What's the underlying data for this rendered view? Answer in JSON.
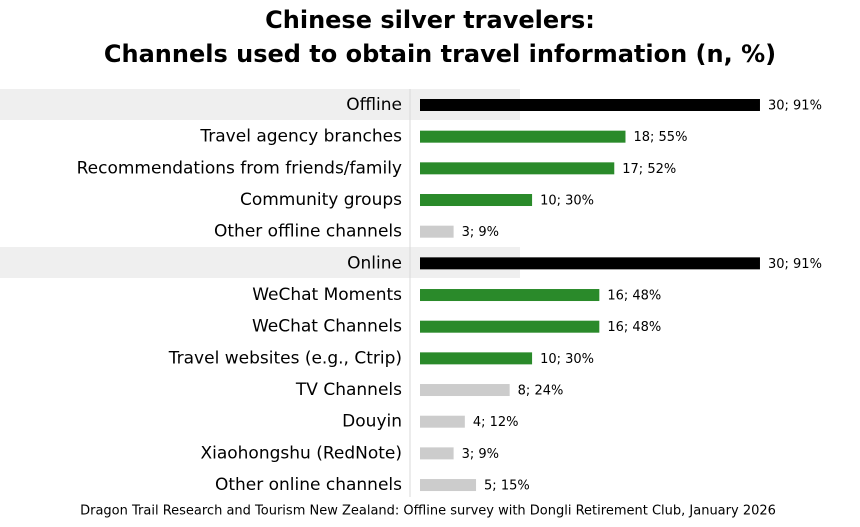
{
  "chart_data": {
    "type": "bar",
    "orientation": "horizontal",
    "title": [
      "Chinese silver travelers:",
      "Channels used to obtain travel information (n, %)"
    ],
    "categories": [
      "Offline",
      "Travel agency branches",
      "Recommendations from friends/family",
      "Community groups",
      "Other offline channels",
      "Online",
      "WeChat Moments",
      "WeChat Channels",
      "Travel websites (e.g., Ctrip)",
      "TV Channels",
      "Douyin",
      "Xiaohongshu (RedNote)",
      "Other online channels"
    ],
    "values": [
      91,
      55,
      52,
      30,
      9,
      91,
      48,
      48,
      30,
      24,
      12,
      9,
      15
    ],
    "value_labels": [
      "30; 91%",
      "18; 55%",
      "17; 52%",
      "10; 30%",
      "3; 9%",
      "30; 91%",
      "16; 48%",
      "16; 48%",
      "10; 30%",
      "8; 24%",
      "4; 12%",
      "3; 9%",
      "5; 15%"
    ],
    "colors": [
      "#000000",
      "#2a8a2a",
      "#2a8a2a",
      "#2a8a2a",
      "#cccccc",
      "#000000",
      "#2a8a2a",
      "#2a8a2a",
      "#2a8a2a",
      "#cccccc",
      "#cccccc",
      "#cccccc",
      "#cccccc"
    ],
    "xlim": [
      0,
      100
    ],
    "source": "Dragon Trail Research and Tourism New Zealand: Offline survey with Dongli Retirement Club, January 2026"
  }
}
